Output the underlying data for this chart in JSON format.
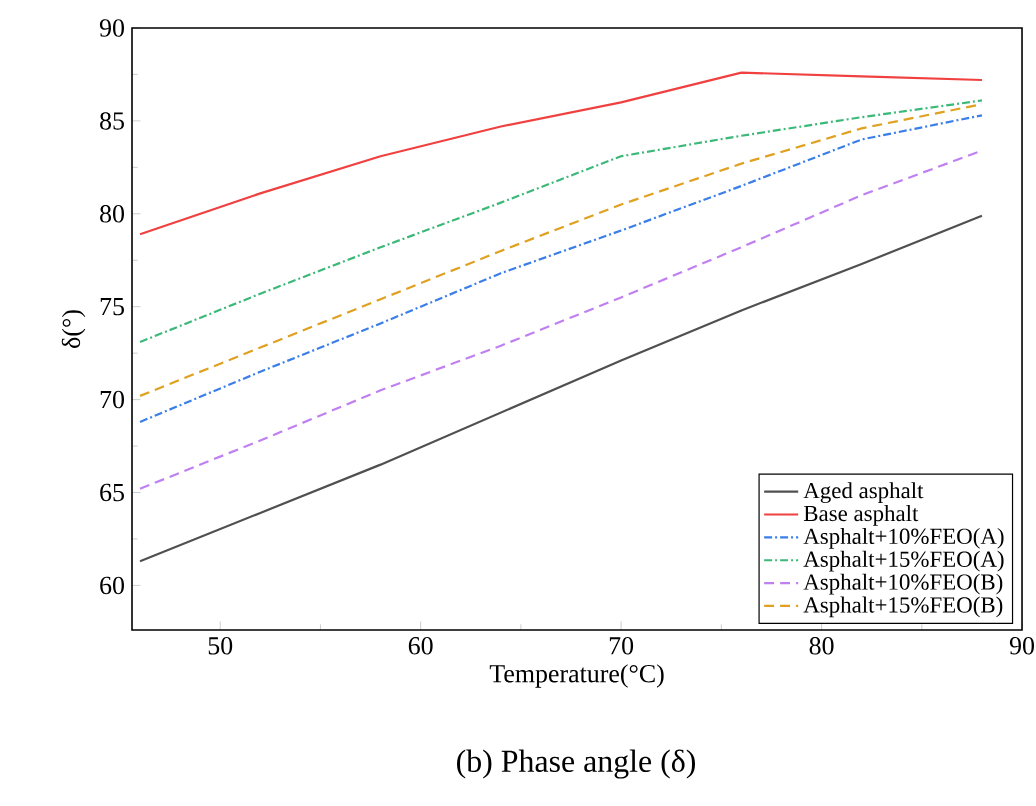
{
  "chart_data": {
    "type": "line",
    "xlabel": "Temperature(°C)",
    "ylabel": "δ(°)",
    "annotations": [
      "(b) Phase angle (δ)"
    ],
    "x": [
      46,
      52,
      58,
      64,
      70,
      76,
      82,
      88
    ],
    "xlim": [
      45.6,
      90
    ],
    "xticks": [
      50,
      60,
      70,
      80,
      90
    ],
    "ylim": [
      57.6,
      90
    ],
    "yticks": [
      60,
      65,
      70,
      75,
      80,
      85,
      90
    ],
    "grid": false,
    "legend": "bottom right",
    "marker": "none",
    "series": [
      {
        "name": "Aged asphalt",
        "color": "#505050",
        "line_style": "solid",
        "values": [
          61.3,
          63.9,
          66.5,
          69.3,
          72.1,
          74.8,
          77.3,
          79.9
        ]
      },
      {
        "name": "Base asphalt",
        "color": "#f04040",
        "line_style": "solid",
        "values": [
          78.9,
          81.1,
          83.1,
          84.7,
          86.0,
          87.6,
          87.4,
          87.2
        ]
      },
      {
        "name": "Asphalt+10%FEO(A)",
        "color": "#3a7ee8",
        "line_style": "dashdot",
        "values": [
          68.8,
          71.5,
          74.1,
          76.8,
          79.1,
          81.5,
          84.0,
          85.3
        ]
      },
      {
        "name": "Asphalt+15%FEO(A)",
        "color": "#3cb878",
        "line_style": "dashdot",
        "values": [
          73.1,
          75.7,
          78.2,
          80.6,
          83.1,
          84.2,
          85.2,
          86.1
        ]
      },
      {
        "name": "Asphalt+10%FEO(B)",
        "color": "#c080f0",
        "line_style": "dashed",
        "values": [
          65.2,
          67.8,
          70.5,
          72.9,
          75.5,
          78.2,
          81.0,
          83.4
        ]
      },
      {
        "name": "Asphalt+15%FEO(B)",
        "color": "#e0a020",
        "line_style": "dashed",
        "values": [
          70.2,
          72.8,
          75.4,
          78.0,
          80.5,
          82.7,
          84.6,
          85.9
        ]
      }
    ]
  }
}
